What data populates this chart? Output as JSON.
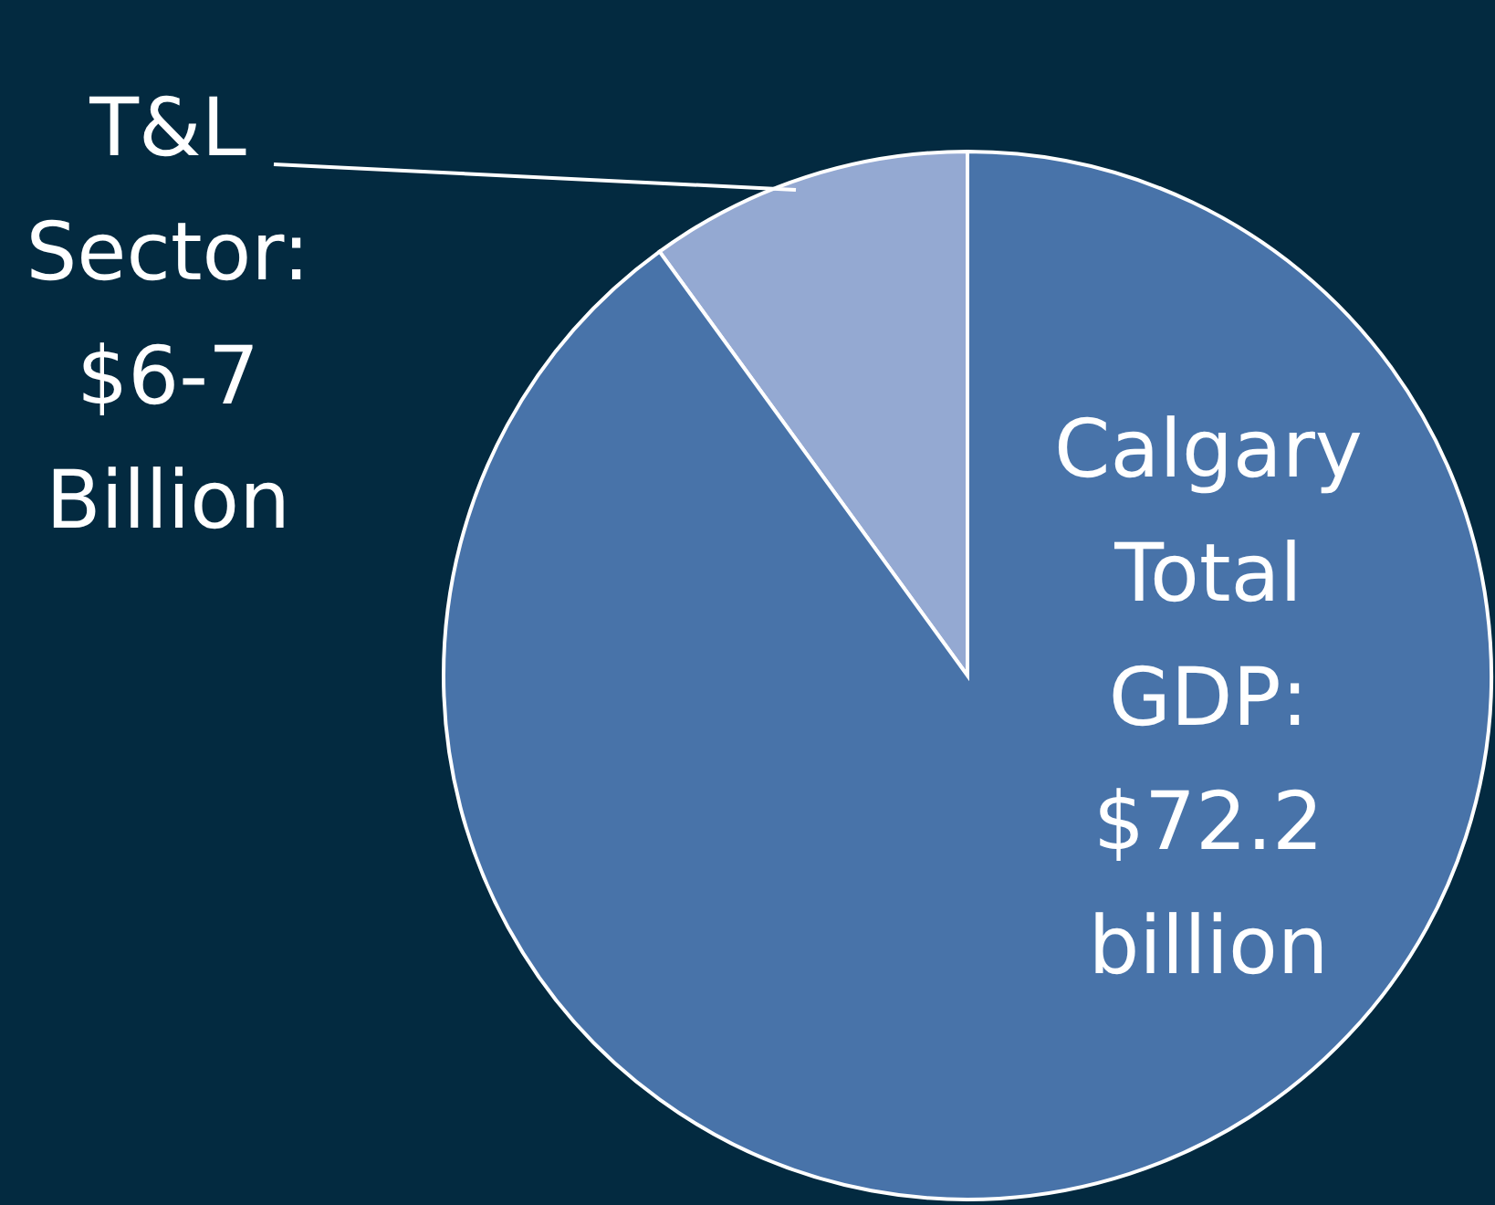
{
  "chart_data": {
    "type": "pie",
    "categories": [
      "T&L Sector: $6-7 Billion",
      "Calgary Total GDP: $72.2 billion"
    ],
    "values": [
      10,
      90
    ],
    "colors": [
      "#94a9d2",
      "#4873a9"
    ]
  }
}
